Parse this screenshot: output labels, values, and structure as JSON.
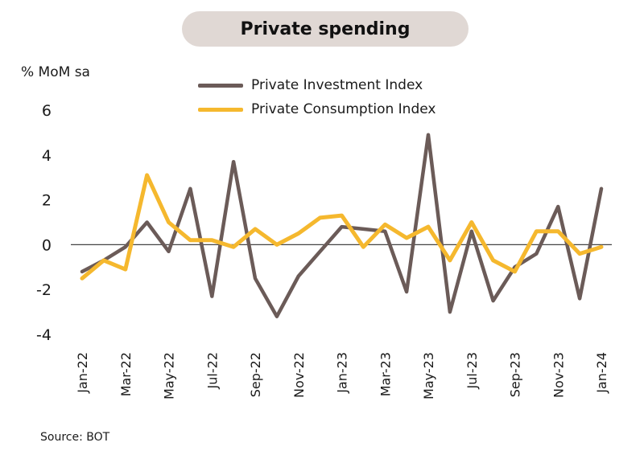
{
  "chart_data": {
    "type": "line",
    "title": "Private spending",
    "ylabel": "% MoM sa",
    "ylim": [
      -4,
      6
    ],
    "yticks": [
      6,
      4,
      2,
      0,
      -2,
      -4
    ],
    "x": [
      "Jan-22",
      "Feb-22",
      "Mar-22",
      "Apr-22",
      "May-22",
      "Jun-22",
      "Jul-22",
      "Aug-22",
      "Sep-22",
      "Oct-22",
      "Nov-22",
      "Dec-22",
      "Jan-23",
      "Feb-23",
      "Mar-23",
      "Apr-23",
      "May-23",
      "Jun-23",
      "Jul-23",
      "Aug-23",
      "Sep-23",
      "Oct-23",
      "Nov-23",
      "Dec-23",
      "Jan-24"
    ],
    "xtick_labels": [
      "Jan-22",
      "Mar-22",
      "May-22",
      "Jul-22",
      "Sep-22",
      "Nov-22",
      "Jan-23",
      "Mar-23",
      "May-23",
      "Jul-23",
      "Sep-23",
      "Nov-23",
      "Jan-24"
    ],
    "series": [
      {
        "name": "Private Investment Index",
        "color": "#6b5b58",
        "values": [
          -1.2,
          -0.7,
          -0.1,
          1.0,
          -0.3,
          2.5,
          -2.3,
          3.7,
          -1.5,
          -3.2,
          -1.4,
          -0.3,
          0.8,
          0.7,
          0.6,
          -2.1,
          4.9,
          -3.0,
          0.6,
          -2.5,
          -1.0,
          -0.4,
          1.7,
          -2.4,
          2.5
        ]
      },
      {
        "name": "Private Consumption Index",
        "color": "#f5b82e",
        "values": [
          -1.5,
          -0.7,
          -1.1,
          3.1,
          1.0,
          0.2,
          0.2,
          -0.1,
          0.7,
          0.0,
          0.5,
          1.2,
          1.3,
          -0.1,
          0.9,
          0.3,
          0.8,
          -0.7,
          1.0,
          -0.7,
          -1.2,
          0.6,
          0.6,
          -0.4,
          -0.1
        ]
      }
    ],
    "grid": false,
    "legend_position": "top-center"
  },
  "source": "Source: BOT"
}
